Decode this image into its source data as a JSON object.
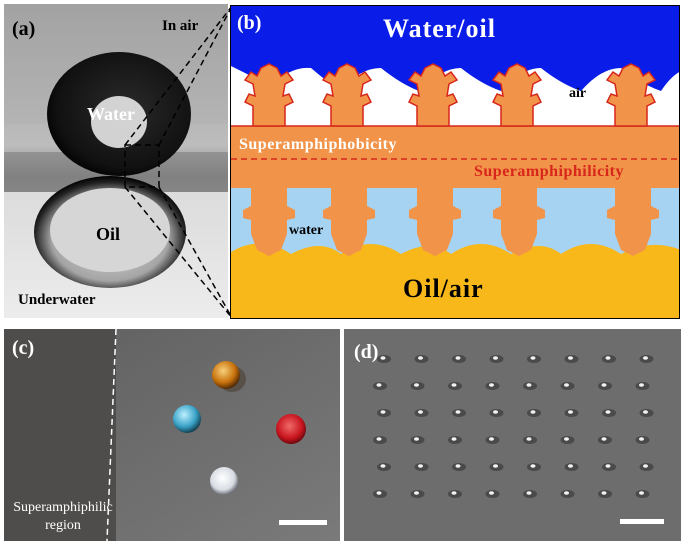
{
  "colors": {
    "water_blue": "#0a1de8",
    "water_light": "#a6d3f2",
    "oil_yellow": "#f9b81a",
    "coating_orange": "#f1944a",
    "outline_red": "#d8261b",
    "surface_gray": "#6d6d6d",
    "photo_gray": "#c8c8c8"
  },
  "panel_a": {
    "label": "(a)",
    "in_air": "In air",
    "water": "Water",
    "oil": "Oil",
    "underwater": "Underwater"
  },
  "panel_b": {
    "label": "(b)",
    "top_medium": "Water/oil",
    "air": "air",
    "superamphiphobicity": "Superamphiphobicity",
    "superamphiphilicity": "Superamphiphilicity",
    "water": "water",
    "bottom_medium": "Oil/air"
  },
  "panel_c": {
    "label": "(c)",
    "region_line1": "Superamphiphilic",
    "region_line2": "region",
    "droplet_colors": [
      "#c8720c",
      "#3aa3c8",
      "#c8141e",
      "#d8dde4"
    ]
  },
  "panel_d": {
    "label": "(d)",
    "grid_rows": 6,
    "grid_cols": 8
  }
}
